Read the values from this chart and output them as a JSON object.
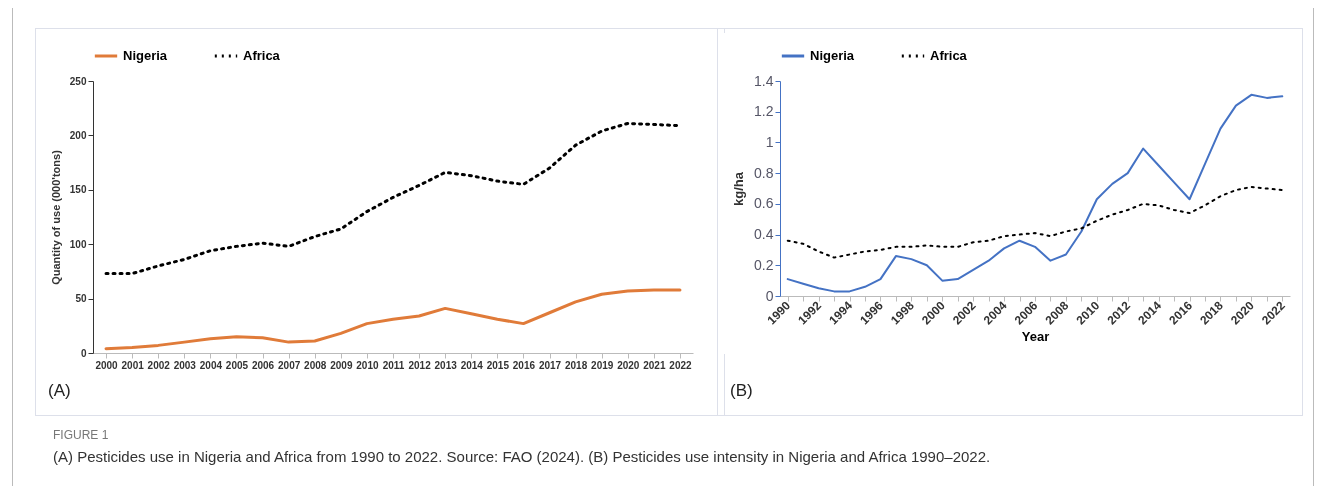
{
  "chart_data": [
    {
      "type": "line",
      "ylabel": "Quantity of use (000'tons)",
      "categories": [
        "2000",
        "2001",
        "2002",
        "2003",
        "2004",
        "2005",
        "2006",
        "2007",
        "2008",
        "2009",
        "2010",
        "2011",
        "2012",
        "2013",
        "2014",
        "2015",
        "2016",
        "2017",
        "2018",
        "2019",
        "2020",
        "2021",
        "2022"
      ],
      "series": [
        {
          "name": "Nigeria",
          "color": "#e07b39",
          "line_style": "solid",
          "values": [
            4,
            5,
            7,
            10,
            13,
            15,
            14,
            10,
            11,
            18,
            27,
            31,
            34,
            41,
            36,
            31,
            27,
            37,
            47,
            54,
            57,
            58,
            58
          ]
        },
        {
          "name": "Africa",
          "color": "#000000",
          "line_style": "dotted",
          "values": [
            73,
            73,
            80,
            86,
            94,
            98,
            101,
            98,
            107,
            114,
            130,
            143,
            154,
            166,
            163,
            158,
            155,
            170,
            191,
            204,
            211,
            210,
            209
          ]
        }
      ],
      "ylim": [
        0,
        250
      ],
      "yticks": [
        0,
        50,
        100,
        150,
        200,
        250
      ],
      "legend": "top",
      "annotations": [
        "(A)"
      ]
    },
    {
      "type": "line",
      "xlabel": "Year",
      "ylabel": "kg/ha",
      "categories": [
        "1990",
        null,
        "1992",
        null,
        "1994",
        null,
        "1996",
        null,
        "1998",
        null,
        "2000",
        null,
        "2002",
        null,
        "2004",
        null,
        "2006",
        null,
        "2008",
        null,
        "2010",
        null,
        "2012",
        null,
        "2014",
        null,
        "2016",
        null,
        "2018",
        null,
        "2020",
        null,
        "2022"
      ],
      "series": [
        {
          "name": "Nigeria",
          "color": "#4472c4",
          "line_style": "solid",
          "values": [
            0.11,
            0.08,
            0.05,
            0.03,
            0.03,
            0.06,
            0.11,
            0.26,
            0.24,
            0.2,
            0.1,
            0.11,
            0.17,
            0.23,
            0.31,
            0.36,
            0.32,
            0.23,
            0.27,
            0.42,
            0.63,
            0.73,
            0.8,
            0.96,
            0.85,
            0.74,
            0.63,
            0.86,
            1.09,
            1.24,
            1.31,
            1.29,
            1.3
          ]
        },
        {
          "name": "Africa",
          "color": "#000000",
          "line_style": "dotted",
          "values": [
            0.36,
            0.34,
            0.29,
            0.25,
            0.27,
            0.29,
            0.3,
            0.32,
            0.32,
            0.33,
            0.32,
            0.32,
            0.35,
            0.36,
            0.39,
            0.4,
            0.41,
            0.39,
            0.42,
            0.44,
            0.49,
            0.53,
            0.56,
            0.6,
            0.59,
            0.56,
            0.54,
            0.59,
            0.65,
            0.69,
            0.71,
            0.7,
            0.69
          ]
        }
      ],
      "ylim": [
        0,
        1.4
      ],
      "yticks": [
        0,
        0.2,
        0.4,
        0.6,
        0.8,
        1,
        1.2,
        1.4
      ],
      "legend": "top",
      "annotations": [
        "(B)",
        "FIGURE 1",
        "(A) Pesticides use in Nigeria and Africa from 1990 to 2022. Source: FAO (2024). (B) Pesticides use intensity in Nigeria and Africa 1990–2022."
      ]
    }
  ]
}
